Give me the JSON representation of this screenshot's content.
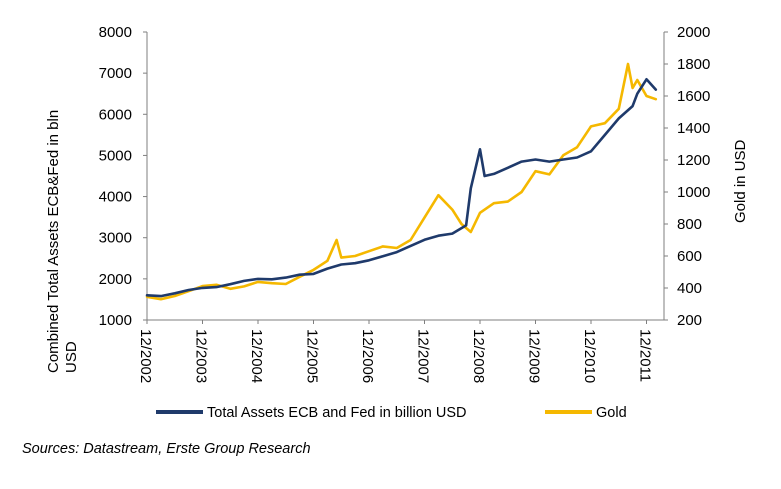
{
  "chart_data": {
    "type": "line",
    "title": "",
    "xlabel": "",
    "ylabel_left": "Combined Total Assets ECB&Fed in bln USD",
    "ylabel_left_lines": [
      "Combined Total Assets ECB&Fed in bln",
      "USD"
    ],
    "ylabel_right": "Gold in USD",
    "ylim_left": [
      1000,
      8000
    ],
    "ylim_right": [
      200,
      2000
    ],
    "yticks_left": [
      "1000",
      "2000",
      "3000",
      "4000",
      "5000",
      "6000",
      "7000",
      "8000"
    ],
    "yticks_right": [
      "200",
      "400",
      "600",
      "800",
      "1000",
      "1200",
      "1400",
      "1600",
      "1800",
      "2000"
    ],
    "x_ticks": [
      "12/2002",
      "12/2003",
      "12/2004",
      "12/2005",
      "12/2006",
      "12/2007",
      "12/2008",
      "12/2009",
      "12/2010",
      "12/2011"
    ],
    "grid": false,
    "legend_position": "bottom",
    "series": [
      {
        "name": "Total Assets ECB and Fed in billion USD",
        "axis": "left",
        "color": "#1f3a6b",
        "x": [
          "2002-12",
          "2003-03",
          "2003-06",
          "2003-09",
          "2003-12",
          "2004-03",
          "2004-06",
          "2004-09",
          "2004-12",
          "2005-03",
          "2005-06",
          "2005-09",
          "2005-12",
          "2006-03",
          "2006-06",
          "2006-09",
          "2006-12",
          "2007-03",
          "2007-06",
          "2007-09",
          "2007-12",
          "2008-03",
          "2008-06",
          "2008-09",
          "2008-10",
          "2008-12",
          "2009-01",
          "2009-03",
          "2009-06",
          "2009-09",
          "2009-12",
          "2010-03",
          "2010-06",
          "2010-09",
          "2010-12",
          "2011-03",
          "2011-06",
          "2011-09",
          "2011-10",
          "2011-12",
          "2012-02"
        ],
        "values": [
          1600,
          1580,
          1650,
          1730,
          1780,
          1800,
          1870,
          1950,
          2000,
          1990,
          2030,
          2100,
          2120,
          2250,
          2350,
          2380,
          2450,
          2550,
          2650,
          2800,
          2950,
          3050,
          3100,
          3300,
          4200,
          5150,
          4500,
          4550,
          4700,
          4850,
          4900,
          4850,
          4900,
          4950,
          5100,
          5500,
          5900,
          6200,
          6500,
          6850,
          6600
        ]
      },
      {
        "name": "Gold",
        "axis": "right",
        "color": "#f5b800",
        "x": [
          "2002-12",
          "2003-03",
          "2003-06",
          "2003-09",
          "2003-12",
          "2004-03",
          "2004-06",
          "2004-09",
          "2004-12",
          "2005-03",
          "2005-06",
          "2005-09",
          "2005-12",
          "2006-03",
          "2006-05",
          "2006-06",
          "2006-09",
          "2006-12",
          "2007-03",
          "2007-06",
          "2007-09",
          "2007-12",
          "2008-03",
          "2008-06",
          "2008-08",
          "2008-10",
          "2008-12",
          "2009-03",
          "2009-06",
          "2009-09",
          "2009-12",
          "2010-03",
          "2010-06",
          "2010-09",
          "2010-12",
          "2011-03",
          "2011-06",
          "2011-08",
          "2011-09",
          "2011-10",
          "2011-12",
          "2012-02"
        ],
        "values": [
          345,
          330,
          350,
          380,
          412,
          420,
          395,
          410,
          438,
          430,
          425,
          470,
          513,
          570,
          700,
          590,
          600,
          630,
          660,
          650,
          700,
          840,
          980,
          890,
          800,
          750,
          870,
          930,
          940,
          1000,
          1130,
          1110,
          1230,
          1280,
          1410,
          1430,
          1520,
          1800,
          1650,
          1700,
          1600,
          1580
        ]
      }
    ]
  },
  "source_note": "Sources: Datastream, Erste Group Research"
}
